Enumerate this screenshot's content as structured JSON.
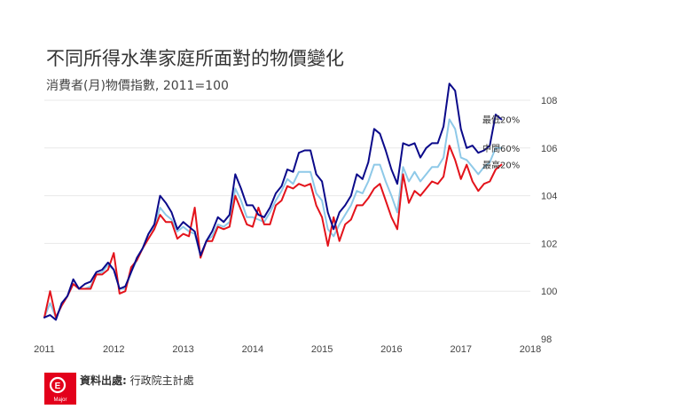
{
  "title": "不同所得水準家庭所面對的物價變化",
  "subtitle": "消費者(月)物價指數, 2011=100",
  "footer": {
    "source_label": "資料出處:",
    "source_name": "行政院主計處",
    "logo_text": "Major"
  },
  "colors": {
    "lowest": "#0b0a8a",
    "middle": "#8ec9e8",
    "highest": "#e3131b",
    "grid": "#e8e8e8",
    "logo": "#e3001b"
  },
  "chart_data": {
    "type": "line",
    "title": "不同所得水準家庭所面對的物價變化",
    "subtitle": "消費者(月)物價指數, 2011=100",
    "x_label": "",
    "y_label": "",
    "x_ticks": [
      "2011",
      "2012",
      "2013",
      "2014",
      "2015",
      "2016",
      "2017",
      "2018"
    ],
    "y_ticks": [
      "98",
      "100",
      "102",
      "104",
      "106",
      "108"
    ],
    "xlim": [
      2011,
      2018
    ],
    "ylim": [
      98,
      108
    ],
    "grid": "horizontal",
    "legend": "direct labels at right end of lines",
    "series": [
      {
        "name": "最低20%",
        "color": "#0b0a8a",
        "values": [
          98.9,
          99.0,
          98.8,
          99.5,
          99.8,
          100.5,
          100.1,
          100.3,
          100.4,
          100.8,
          100.9,
          101.2,
          100.9,
          100.1,
          100.2,
          100.8,
          101.4,
          101.8,
          102.4,
          102.8,
          104.0,
          103.7,
          103.3,
          102.6,
          102.9,
          102.7,
          102.5,
          101.5,
          102.1,
          102.5,
          103.1,
          102.9,
          103.2,
          104.9,
          104.3,
          103.6,
          103.6,
          103.2,
          103.1,
          103.5,
          104.1,
          104.4,
          105.1,
          105.0,
          105.8,
          105.9,
          105.9,
          104.9,
          104.6,
          103.3,
          102.6,
          103.3,
          103.6,
          104.0,
          104.9,
          104.7,
          105.4,
          106.8,
          106.6,
          105.9,
          105.1,
          104.5,
          106.2,
          106.1,
          106.2,
          105.6,
          106.0,
          106.2,
          106.2,
          106.9,
          108.7,
          108.4,
          106.8,
          106.0,
          106.1,
          105.8,
          105.9,
          106.1,
          107.4,
          107.2
        ]
      },
      {
        "name": "中間60%",
        "color": "#8ec9e8",
        "values": [
          98.9,
          99.5,
          98.9,
          99.4,
          99.8,
          100.3,
          100.1,
          100.1,
          100.2,
          100.7,
          100.8,
          101.1,
          100.9,
          100.1,
          100.1,
          100.8,
          101.3,
          101.8,
          102.4,
          102.7,
          103.5,
          103.2,
          103.0,
          102.5,
          102.7,
          102.5,
          102.4,
          101.5,
          102.1,
          102.3,
          102.8,
          102.7,
          102.9,
          104.3,
          103.8,
          103.1,
          103.1,
          103.0,
          102.9,
          103.3,
          103.8,
          104.2,
          104.7,
          104.5,
          105.0,
          105.0,
          105.0,
          104.1,
          103.8,
          102.6,
          102.3,
          102.8,
          103.2,
          103.6,
          104.2,
          104.1,
          104.6,
          105.3,
          105.3,
          104.6,
          104.0,
          103.3,
          105.2,
          104.6,
          105.0,
          104.6,
          104.9,
          105.2,
          105.2,
          105.6,
          107.2,
          106.8,
          105.6,
          105.5,
          105.2,
          104.9,
          105.2,
          105.4,
          106.0,
          106.0
        ]
      },
      {
        "name": "最高20%",
        "color": "#e3131b",
        "values": [
          98.9,
          100.0,
          98.9,
          99.4,
          99.8,
          100.3,
          100.1,
          100.1,
          100.1,
          100.7,
          100.7,
          100.9,
          101.6,
          99.9,
          100.0,
          101.0,
          101.3,
          101.8,
          102.2,
          102.6,
          103.2,
          102.9,
          102.9,
          102.2,
          102.4,
          102.3,
          103.5,
          101.4,
          102.1,
          102.1,
          102.7,
          102.6,
          102.7,
          104.0,
          103.4,
          102.8,
          102.7,
          103.5,
          102.8,
          102.8,
          103.6,
          103.8,
          104.4,
          104.3,
          104.5,
          104.4,
          104.5,
          103.6,
          103.1,
          101.9,
          103.1,
          102.1,
          102.8,
          103.0,
          103.6,
          103.6,
          103.9,
          104.3,
          104.5,
          103.8,
          103.1,
          102.6,
          104.9,
          103.7,
          104.2,
          104.0,
          104.3,
          104.6,
          104.5,
          104.8,
          106.1,
          105.5,
          104.7,
          105.3,
          104.6,
          104.2,
          104.5,
          104.6,
          105.1,
          105.3
        ]
      }
    ]
  }
}
